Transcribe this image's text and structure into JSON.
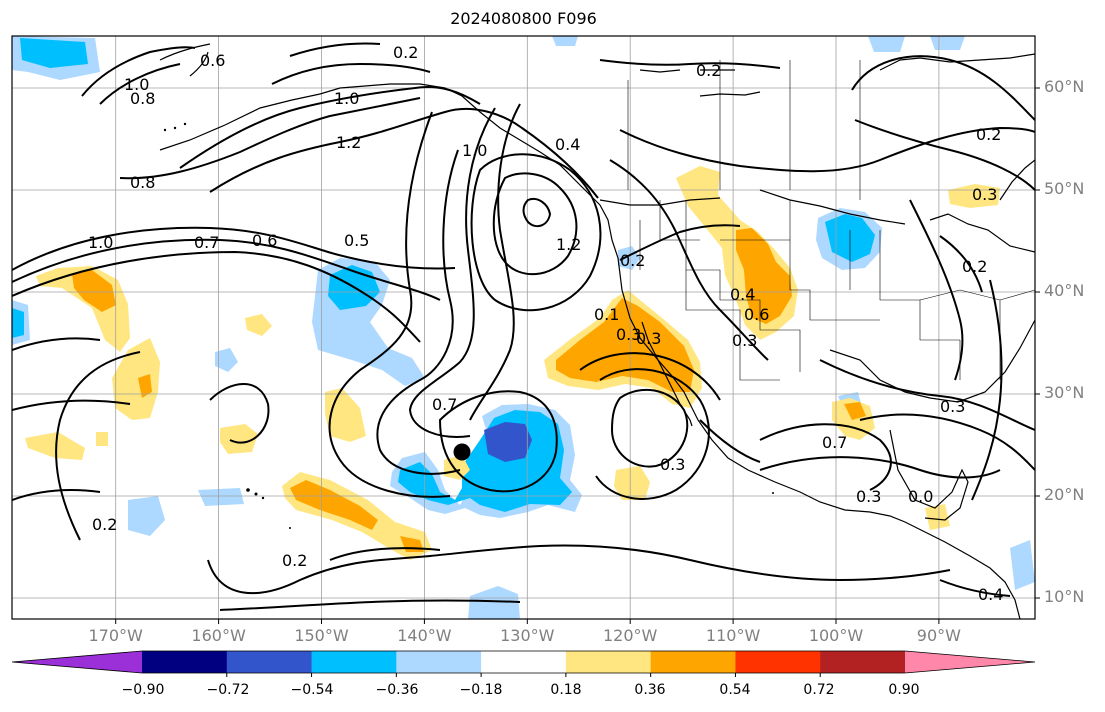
{
  "title": "2024080800 F096",
  "map": {
    "lon_labels": [
      "170°W",
      "160°W",
      "150°W",
      "140°W",
      "130°W",
      "120°W",
      "110°W",
      "100°W",
      "90°W"
    ],
    "lat_labels": [
      "60°N",
      "50°N",
      "40°N",
      "30°N",
      "20°N",
      "10°N"
    ],
    "contour_labels": [
      "0.6",
      "0.2",
      "1.0",
      "0.8",
      "1.0",
      "1.2",
      "0.8",
      "0.2",
      "1.0",
      "0.7",
      "0.6",
      "0.5",
      "1.0",
      "0.4",
      "1.2",
      "0.2",
      "0.7",
      "0.3",
      "0.3",
      "0.4",
      "0.6",
      "0.3",
      "0.3",
      "0.2",
      "0.2",
      "0.3",
      "0.7",
      "0.2",
      "0.2",
      "0.4",
      "0.3",
      "0.1",
      "0.3",
      "0.0"
    ],
    "marker": "storm-center"
  },
  "colorbar": {
    "ticks": [
      "−0.90",
      "−0.72",
      "−0.54",
      "−0.36",
      "−0.18",
      "0.18",
      "0.36",
      "0.54",
      "0.72",
      "0.90"
    ],
    "colors": [
      "#9b30d9",
      "#000080",
      "#3355cc",
      "#00bfff",
      "#add8ff",
      "#ffffff",
      "#ffe680",
      "#ffa500",
      "#ff3300",
      "#b22222",
      "#ff88aa"
    ]
  }
}
